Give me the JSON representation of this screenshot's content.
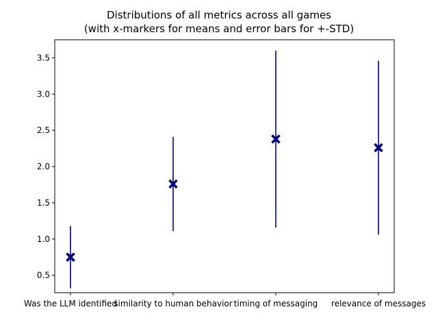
{
  "chart_data": {
    "type": "errorbar",
    "title": "Distributions of all metrics across all games\n(with x-markers for means and error bars for +-STD)",
    "xlabel": "",
    "ylabel": "",
    "categories": [
      "Was the LLM identified",
      "similarity to human behavior",
      "timing of messaging",
      "relevance of messages"
    ],
    "means": [
      0.75,
      1.76,
      2.38,
      2.26
    ],
    "std": [
      0.43,
      0.65,
      1.22,
      1.2
    ],
    "ylim": [
      0.26,
      3.75
    ],
    "yticks": [
      0.5,
      1.0,
      1.5,
      2.0,
      2.5,
      3.0,
      3.5
    ],
    "ytick_labels": [
      "0.5",
      "1.0",
      "1.5",
      "2.0",
      "2.5",
      "3.0",
      "3.5"
    ],
    "marker": "x",
    "grid": false,
    "legend": "none",
    "colors": {
      "series": "#00007f",
      "axis": "#000000"
    }
  }
}
